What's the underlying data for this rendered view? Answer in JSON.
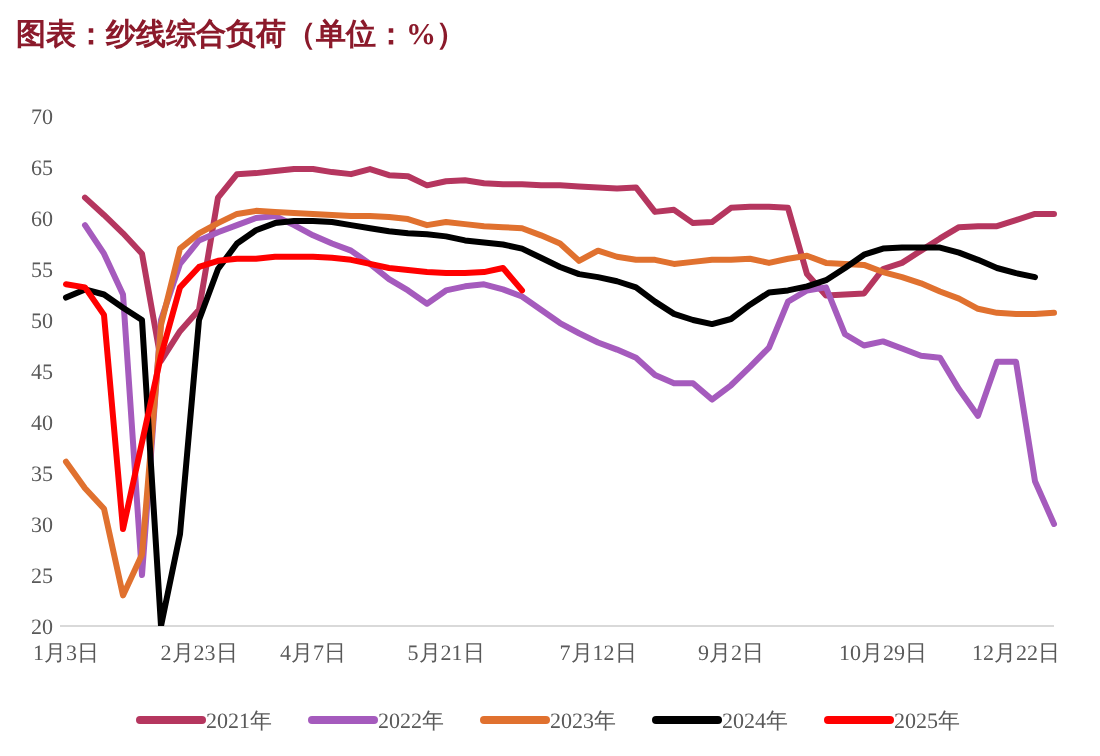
{
  "chart_data": {
    "type": "line",
    "title": "图表：纱线综合负荷（单位：%）",
    "categories": [
      "1月3日",
      null,
      null,
      null,
      null,
      null,
      null,
      "2月23日",
      null,
      null,
      null,
      null,
      null,
      "4月7日",
      null,
      null,
      null,
      null,
      null,
      null,
      "5月21日",
      null,
      null,
      null,
      null,
      null,
      null,
      null,
      "7月12日",
      null,
      null,
      null,
      null,
      null,
      null,
      "9月2日",
      null,
      null,
      null,
      null,
      null,
      null,
      null,
      "10月29日",
      null,
      null,
      null,
      null,
      null,
      null,
      "12月22日",
      null,
      null
    ],
    "series": [
      {
        "name": "2021年",
        "color": "#b5365f",
        "values": [
          null,
          62,
          60.3,
          58.5,
          56.5,
          46,
          48.9,
          51,
          62,
          64.3,
          64.4,
          64.6,
          64.8,
          64.8,
          64.5,
          64.3,
          64.8,
          64.2,
          64.1,
          63.2,
          63.6,
          63.7,
          63.4,
          63.3,
          63.3,
          63.2,
          63.2,
          63.1,
          63,
          62.9,
          63,
          60.6,
          60.8,
          59.5,
          59.6,
          61,
          61.1,
          61.1,
          61,
          54.5,
          52.4,
          52.5,
          52.6,
          55,
          55.6,
          56.8,
          58,
          59.1,
          59.2,
          59.2,
          59.8,
          60.4,
          60.4
        ]
      },
      {
        "name": "2022年",
        "color": "#a55bbd",
        "values": [
          null,
          59.3,
          56.5,
          52.5,
          25,
          50,
          55.5,
          57.8,
          58.6,
          59.3,
          60,
          60.2,
          59.3,
          58.3,
          57.5,
          56.8,
          55.5,
          54,
          52.9,
          51.6,
          52.9,
          53.3,
          53.5,
          53,
          52.3,
          51,
          49.7,
          48.7,
          47.8,
          47.1,
          46.3,
          44.6,
          43.8,
          43.8,
          42.2,
          43.6,
          45.4,
          47.3,
          51.8,
          52.9,
          53.2,
          48.6,
          47.5,
          47.9,
          47.2,
          46.5,
          46.3,
          43.2,
          40.6,
          45.9,
          45.9,
          34.2,
          30
        ]
      },
      {
        "name": "2023年",
        "color": "#e0712f",
        "values": [
          36.1,
          33.5,
          31.5,
          23,
          27,
          49.5,
          57,
          58.5,
          59.5,
          60.4,
          60.7,
          60.6,
          60.5,
          60.4,
          60.3,
          60.2,
          60.2,
          60.1,
          59.9,
          59.3,
          59.6,
          59.4,
          59.2,
          59.1,
          59,
          58.3,
          57.5,
          55.8,
          56.8,
          56.2,
          55.9,
          55.9,
          55.5,
          55.7,
          55.9,
          55.9,
          56,
          55.6,
          56,
          56.3,
          55.6,
          55.5,
          55.4,
          54.7,
          54.2,
          53.6,
          52.8,
          52.1,
          51.1,
          50.7,
          50.6,
          50.6,
          50.7
        ]
      },
      {
        "name": "2024年",
        "color": "#000000",
        "values": [
          52.2,
          53,
          52.5,
          51.2,
          50,
          20,
          29,
          50,
          55,
          57.5,
          58.8,
          59.5,
          59.7,
          59.7,
          59.6,
          59.3,
          59,
          58.7,
          58.5,
          58.4,
          58.2,
          57.8,
          57.6,
          57.4,
          57,
          56.1,
          55.2,
          54.5,
          54.2,
          53.8,
          53.2,
          51.8,
          50.6,
          50,
          49.6,
          50.1,
          51.5,
          52.7,
          52.9,
          53.3,
          53.9,
          55.1,
          56.4,
          57,
          57.1,
          57.1,
          57.1,
          56.6,
          55.9,
          55.1,
          54.6,
          54.2,
          null
        ]
      },
      {
        "name": "2025年",
        "color": "#ff0000",
        "values": [
          53.5,
          53.2,
          50.5,
          29.5,
          38,
          46.5,
          53.2,
          55.2,
          55.8,
          56,
          56,
          56.2,
          56.2,
          56.2,
          56.1,
          55.9,
          55.5,
          55.1,
          54.9,
          54.7,
          54.6,
          54.6,
          54.7,
          55.1,
          52.9,
          null,
          null,
          null,
          null,
          null,
          null,
          null,
          null,
          null,
          null,
          null,
          null,
          null,
          null,
          null,
          null,
          null,
          null,
          null,
          null,
          null,
          null,
          null,
          null,
          null,
          null,
          null,
          null
        ]
      }
    ],
    "ylim": [
      20,
      70
    ],
    "yticks": [
      20,
      25,
      30,
      35,
      40,
      45,
      50,
      55,
      60,
      65,
      70
    ],
    "grid": false,
    "legend": "bottom",
    "marker": "none",
    "line_style": "solid"
  }
}
